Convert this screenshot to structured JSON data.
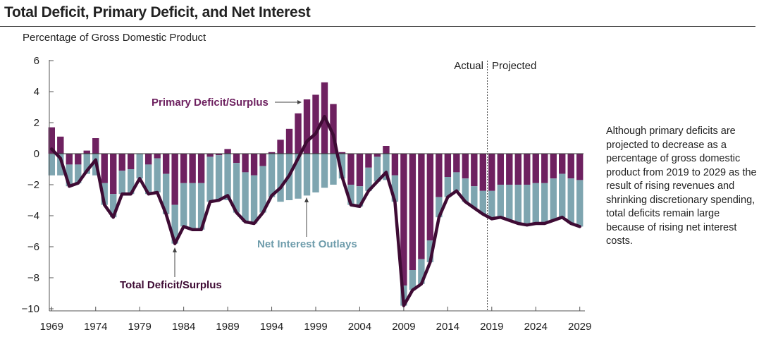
{
  "chart_data": {
    "type": "bar",
    "title": "Total Deficit, Primary Deficit, and Net Interest",
    "subtitle": "Percentage of Gross Domestic Product",
    "ylim": [
      -10,
      6
    ],
    "yticks": [
      6,
      4,
      2,
      0,
      -2,
      -4,
      -6,
      -8,
      -10
    ],
    "ytick_labels": [
      "6",
      "4",
      "2",
      "0",
      "−2",
      "−4",
      "−6",
      "−8",
      "−10"
    ],
    "xtick_labels": [
      "1969",
      "1974",
      "1979",
      "1984",
      "1989",
      "1994",
      "1999",
      "2004",
      "2009",
      "2014",
      "2019",
      "2024",
      "2029"
    ],
    "years": [
      1969,
      1970,
      1971,
      1972,
      1973,
      1974,
      1975,
      1976,
      1977,
      1978,
      1979,
      1980,
      1981,
      1982,
      1983,
      1984,
      1985,
      1986,
      1987,
      1988,
      1989,
      1990,
      1991,
      1992,
      1993,
      1994,
      1995,
      1996,
      1997,
      1998,
      1999,
      2000,
      2001,
      2002,
      2003,
      2004,
      2005,
      2006,
      2007,
      2008,
      2009,
      2010,
      2011,
      2012,
      2013,
      2014,
      2015,
      2016,
      2017,
      2018,
      2019,
      2020,
      2021,
      2022,
      2023,
      2024,
      2025,
      2026,
      2027,
      2028,
      2029
    ],
    "series": [
      {
        "name": "Primary Deficit/Surplus",
        "kind": "stacked-bar",
        "color": "#6e2160",
        "values": [
          1.7,
          1.1,
          -0.7,
          -0.7,
          0.2,
          1.0,
          -1.9,
          -2.6,
          -1.1,
          -1.0,
          0.0,
          -0.7,
          -0.3,
          -1.3,
          -3.3,
          -1.9,
          -1.9,
          -1.9,
          -0.2,
          -0.1,
          0.3,
          -0.6,
          -1.2,
          -1.4,
          -0.8,
          0.1,
          0.9,
          1.6,
          2.6,
          3.5,
          3.8,
          4.6,
          3.2,
          0.1,
          -2.0,
          -2.1,
          -0.9,
          -0.2,
          0.5,
          -1.4,
          -8.5,
          -7.5,
          -6.8,
          -5.6,
          -2.8,
          -1.5,
          -1.2,
          -1.6,
          -2.1,
          -2.4,
          -2.4,
          -2.0,
          -2.0,
          -2.0,
          -2.0,
          -1.9,
          -1.9,
          -1.6,
          -1.3,
          -1.6,
          -1.7
        ]
      },
      {
        "name": "Net Interest Outlays",
        "kind": "stacked-bar",
        "color": "#7ea5b0",
        "values": [
          -1.4,
          -1.4,
          -1.4,
          -1.2,
          -1.3,
          -1.4,
          -1.4,
          -1.5,
          -1.5,
          -1.6,
          -1.6,
          -1.9,
          -2.2,
          -2.6,
          -2.5,
          -2.8,
          -3.0,
          -3.0,
          -2.9,
          -2.9,
          -3.0,
          -3.2,
          -3.2,
          -3.1,
          -3.0,
          -2.8,
          -3.1,
          -3.0,
          -2.9,
          -2.7,
          -2.5,
          -2.2,
          -2.0,
          -1.6,
          -1.3,
          -1.3,
          -1.5,
          -1.6,
          -1.7,
          -1.7,
          -1.3,
          -1.3,
          -1.6,
          -1.4,
          -1.3,
          -1.3,
          -1.2,
          -1.5,
          -1.4,
          -1.5,
          -1.8,
          -2.1,
          -2.3,
          -2.5,
          -2.6,
          -2.6,
          -2.6,
          -2.7,
          -2.8,
          -2.9,
          -3.0
        ]
      },
      {
        "name": "Total Deficit/Surplus",
        "kind": "line",
        "color": "#3e0b34",
        "values": [
          0.3,
          -0.3,
          -2.1,
          -1.9,
          -1.1,
          -0.4,
          -3.3,
          -4.1,
          -2.6,
          -2.6,
          -1.6,
          -2.6,
          -2.5,
          -3.9,
          -5.8,
          -4.7,
          -4.9,
          -4.9,
          -3.1,
          -3.0,
          -2.7,
          -3.8,
          -4.4,
          -4.5,
          -3.8,
          -2.7,
          -2.2,
          -1.4,
          -0.3,
          0.8,
          1.3,
          2.4,
          1.2,
          -1.5,
          -3.3,
          -3.4,
          -2.4,
          -1.8,
          -1.2,
          -3.1,
          -9.8,
          -8.8,
          -8.4,
          -7.0,
          -4.1,
          -2.8,
          -2.4,
          -3.1,
          -3.5,
          -3.9,
          -4.2,
          -4.1,
          -4.3,
          -4.5,
          -4.6,
          -4.5,
          -4.5,
          -4.3,
          -4.1,
          -4.5,
          -4.7
        ]
      }
    ],
    "annotations": {
      "actual": "Actual",
      "projected": "Projected",
      "divider_between": [
        2018,
        2019
      ]
    },
    "grid": false,
    "legend": "inline labels"
  },
  "note": "Although primary deficits are projected to decrease as a percentage of gross domestic product from 2019 to 2029 as the result of rising revenues and shrinking discretionary spending, total deficits remain large because of rising net interest costs."
}
